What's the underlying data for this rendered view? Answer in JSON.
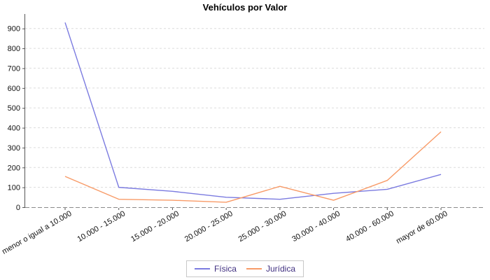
{
  "chart_data": {
    "type": "line",
    "title": "Vehículos por Valor",
    "xlabel": "",
    "ylabel": "",
    "categories": [
      "menor o igual a 10.000",
      "10.000 - 15.000",
      "15.000 - 20.000",
      "20.000 - 25.000",
      "25.000 - 30.000",
      "30.000 - 40.000",
      "40.000 - 60.000",
      "mayor de 60.000"
    ],
    "series": [
      {
        "name": "Física",
        "color": "#7b7be0",
        "values": [
          930,
          100,
          80,
          50,
          40,
          70,
          90,
          165
        ]
      },
      {
        "name": "Jurídica",
        "color": "#f89b68",
        "values": [
          155,
          40,
          35,
          25,
          105,
          35,
          135,
          380
        ]
      }
    ],
    "yticks": [
      0,
      100,
      200,
      300,
      400,
      500,
      600,
      700,
      800,
      900
    ],
    "ylim": [
      0,
      950
    ],
    "grid": "horizontal-dashed",
    "legend_position": "bottom"
  },
  "colors": {
    "grid": "#dcdcdc",
    "axis": "#555555",
    "bottom_axis": "#8a8a8a",
    "tick_label": "#111111",
    "title": "#000000",
    "legend_text": "#403080",
    "legend_border": "#c8c8c8",
    "background": "#ffffff"
  }
}
